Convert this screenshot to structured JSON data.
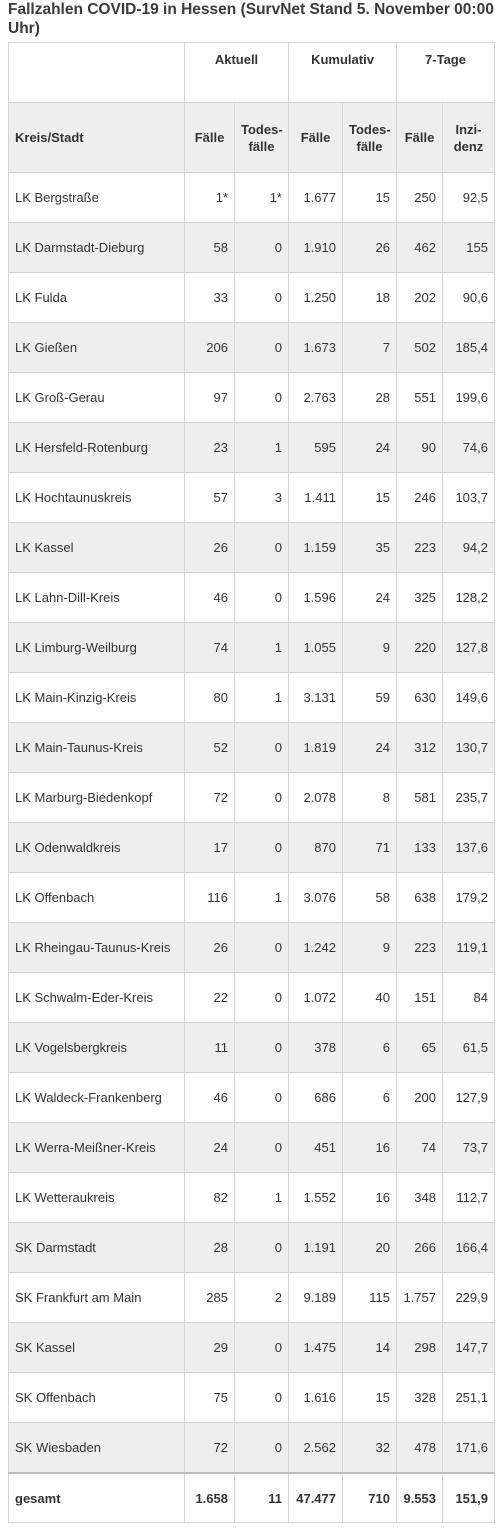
{
  "title": "Fallzahlen COVID-19 in Hessen (SurvNet Stand 5. November 00:00 Uhr)",
  "groups": [
    "",
    "Aktuell",
    "Kumulativ",
    "7-Tage"
  ],
  "columns": {
    "kreis": "Kreis/Stadt",
    "faelle": "Fälle",
    "todes": "Todes-\nfälle",
    "inzidenz": "Inzi-\ndenz"
  },
  "rows": [
    [
      "LK Bergstraße",
      "1*",
      "1*",
      "1.677",
      "15",
      "250",
      "92,5"
    ],
    [
      "LK Darmstadt-Dieburg",
      "58",
      "0",
      "1.910",
      "26",
      "462",
      "155"
    ],
    [
      "LK Fulda",
      "33",
      "0",
      "1.250",
      "18",
      "202",
      "90,6"
    ],
    [
      "LK Gießen",
      "206",
      "0",
      "1.673",
      "7",
      "502",
      "185,4"
    ],
    [
      "LK Groß-Gerau",
      "97",
      "0",
      "2.763",
      "28",
      "551",
      "199,6"
    ],
    [
      "LK Hersfeld-Rotenburg",
      "23",
      "1",
      "595",
      "24",
      "90",
      "74,6"
    ],
    [
      "LK Hochtaunuskreis",
      "57",
      "3",
      "1.411",
      "15",
      "246",
      "103,7"
    ],
    [
      "LK Kassel",
      "26",
      "0",
      "1.159",
      "35",
      "223",
      "94,2"
    ],
    [
      "LK Lahn-Dill-Kreis",
      "46",
      "0",
      "1.596",
      "24",
      "325",
      "128,2"
    ],
    [
      "LK Limburg-Weilburg",
      "74",
      "1",
      "1.055",
      "9",
      "220",
      "127,8"
    ],
    [
      "LK Main-Kinzig-Kreis",
      "80",
      "1",
      "3.131",
      "59",
      "630",
      "149,6"
    ],
    [
      "LK Main-Taunus-Kreis",
      "52",
      "0",
      "1.819",
      "24",
      "312",
      "130,7"
    ],
    [
      "LK Marburg-Biedenkopf",
      "72",
      "0",
      "2.078",
      "8",
      "581",
      "235,7"
    ],
    [
      "LK Odenwaldkreis",
      "17",
      "0",
      "870",
      "71",
      "133",
      "137,6"
    ],
    [
      "LK Offenbach",
      "116",
      "1",
      "3.076",
      "58",
      "638",
      "179,2"
    ],
    [
      "LK Rheingau-Taunus-Kreis",
      "26",
      "0",
      "1.242",
      "9",
      "223",
      "119,1"
    ],
    [
      "LK Schwalm-Eder-Kreis",
      "22",
      "0",
      "1.072",
      "40",
      "151",
      "84"
    ],
    [
      "LK Vogelsbergkreis",
      "11",
      "0",
      "378",
      "6",
      "65",
      "61,5"
    ],
    [
      "LK Waldeck-Frankenberg",
      "46",
      "0",
      "686",
      "6",
      "200",
      "127,9"
    ],
    [
      "LK Werra-Meißner-Kreis",
      "24",
      "0",
      "451",
      "16",
      "74",
      "73,7"
    ],
    [
      "LK Wetteraukreis",
      "82",
      "1",
      "1.552",
      "16",
      "348",
      "112,7"
    ],
    [
      "SK Darmstadt",
      "28",
      "0",
      "1.191",
      "20",
      "266",
      "166,4"
    ],
    [
      "SK Frankfurt am Main",
      "285",
      "2",
      "9.189",
      "115",
      "1.757",
      "229,9"
    ],
    [
      "SK Kassel",
      "29",
      "0",
      "1.475",
      "14",
      "298",
      "147,7"
    ],
    [
      "SK Offenbach",
      "75",
      "0",
      "1.616",
      "15",
      "328",
      "251,1"
    ],
    [
      "SK Wiesbaden",
      "72",
      "0",
      "2.562",
      "32",
      "478",
      "171,6"
    ]
  ],
  "total": [
    "gesamt",
    "1.658",
    "11",
    "47.477",
    "710",
    "9.553",
    "151,9"
  ]
}
